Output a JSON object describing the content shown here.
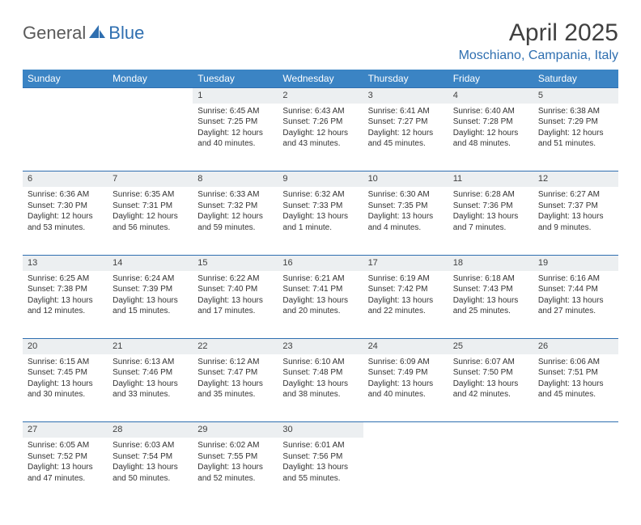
{
  "logo": {
    "part1": "General",
    "part2": "Blue"
  },
  "title": "April 2025",
  "location": "Moschiano, Campania, Italy",
  "colors": {
    "header_bg": "#3b84c4",
    "header_text": "#ffffff",
    "accent": "#2f6fb0",
    "daynum_bg": "#eceff1",
    "border": "#2f6fb0",
    "body_text": "#333333",
    "title_text": "#404040"
  },
  "weekdays": [
    "Sunday",
    "Monday",
    "Tuesday",
    "Wednesday",
    "Thursday",
    "Friday",
    "Saturday"
  ],
  "weeks": [
    [
      null,
      null,
      {
        "n": "1",
        "sr": "Sunrise: 6:45 AM",
        "ss": "Sunset: 7:25 PM",
        "d1": "Daylight: 12 hours",
        "d2": "and 40 minutes."
      },
      {
        "n": "2",
        "sr": "Sunrise: 6:43 AM",
        "ss": "Sunset: 7:26 PM",
        "d1": "Daylight: 12 hours",
        "d2": "and 43 minutes."
      },
      {
        "n": "3",
        "sr": "Sunrise: 6:41 AM",
        "ss": "Sunset: 7:27 PM",
        "d1": "Daylight: 12 hours",
        "d2": "and 45 minutes."
      },
      {
        "n": "4",
        "sr": "Sunrise: 6:40 AM",
        "ss": "Sunset: 7:28 PM",
        "d1": "Daylight: 12 hours",
        "d2": "and 48 minutes."
      },
      {
        "n": "5",
        "sr": "Sunrise: 6:38 AM",
        "ss": "Sunset: 7:29 PM",
        "d1": "Daylight: 12 hours",
        "d2": "and 51 minutes."
      }
    ],
    [
      {
        "n": "6",
        "sr": "Sunrise: 6:36 AM",
        "ss": "Sunset: 7:30 PM",
        "d1": "Daylight: 12 hours",
        "d2": "and 53 minutes."
      },
      {
        "n": "7",
        "sr": "Sunrise: 6:35 AM",
        "ss": "Sunset: 7:31 PM",
        "d1": "Daylight: 12 hours",
        "d2": "and 56 minutes."
      },
      {
        "n": "8",
        "sr": "Sunrise: 6:33 AM",
        "ss": "Sunset: 7:32 PM",
        "d1": "Daylight: 12 hours",
        "d2": "and 59 minutes."
      },
      {
        "n": "9",
        "sr": "Sunrise: 6:32 AM",
        "ss": "Sunset: 7:33 PM",
        "d1": "Daylight: 13 hours",
        "d2": "and 1 minute."
      },
      {
        "n": "10",
        "sr": "Sunrise: 6:30 AM",
        "ss": "Sunset: 7:35 PM",
        "d1": "Daylight: 13 hours",
        "d2": "and 4 minutes."
      },
      {
        "n": "11",
        "sr": "Sunrise: 6:28 AM",
        "ss": "Sunset: 7:36 PM",
        "d1": "Daylight: 13 hours",
        "d2": "and 7 minutes."
      },
      {
        "n": "12",
        "sr": "Sunrise: 6:27 AM",
        "ss": "Sunset: 7:37 PM",
        "d1": "Daylight: 13 hours",
        "d2": "and 9 minutes."
      }
    ],
    [
      {
        "n": "13",
        "sr": "Sunrise: 6:25 AM",
        "ss": "Sunset: 7:38 PM",
        "d1": "Daylight: 13 hours",
        "d2": "and 12 minutes."
      },
      {
        "n": "14",
        "sr": "Sunrise: 6:24 AM",
        "ss": "Sunset: 7:39 PM",
        "d1": "Daylight: 13 hours",
        "d2": "and 15 minutes."
      },
      {
        "n": "15",
        "sr": "Sunrise: 6:22 AM",
        "ss": "Sunset: 7:40 PM",
        "d1": "Daylight: 13 hours",
        "d2": "and 17 minutes."
      },
      {
        "n": "16",
        "sr": "Sunrise: 6:21 AM",
        "ss": "Sunset: 7:41 PM",
        "d1": "Daylight: 13 hours",
        "d2": "and 20 minutes."
      },
      {
        "n": "17",
        "sr": "Sunrise: 6:19 AM",
        "ss": "Sunset: 7:42 PM",
        "d1": "Daylight: 13 hours",
        "d2": "and 22 minutes."
      },
      {
        "n": "18",
        "sr": "Sunrise: 6:18 AM",
        "ss": "Sunset: 7:43 PM",
        "d1": "Daylight: 13 hours",
        "d2": "and 25 minutes."
      },
      {
        "n": "19",
        "sr": "Sunrise: 6:16 AM",
        "ss": "Sunset: 7:44 PM",
        "d1": "Daylight: 13 hours",
        "d2": "and 27 minutes."
      }
    ],
    [
      {
        "n": "20",
        "sr": "Sunrise: 6:15 AM",
        "ss": "Sunset: 7:45 PM",
        "d1": "Daylight: 13 hours",
        "d2": "and 30 minutes."
      },
      {
        "n": "21",
        "sr": "Sunrise: 6:13 AM",
        "ss": "Sunset: 7:46 PM",
        "d1": "Daylight: 13 hours",
        "d2": "and 33 minutes."
      },
      {
        "n": "22",
        "sr": "Sunrise: 6:12 AM",
        "ss": "Sunset: 7:47 PM",
        "d1": "Daylight: 13 hours",
        "d2": "and 35 minutes."
      },
      {
        "n": "23",
        "sr": "Sunrise: 6:10 AM",
        "ss": "Sunset: 7:48 PM",
        "d1": "Daylight: 13 hours",
        "d2": "and 38 minutes."
      },
      {
        "n": "24",
        "sr": "Sunrise: 6:09 AM",
        "ss": "Sunset: 7:49 PM",
        "d1": "Daylight: 13 hours",
        "d2": "and 40 minutes."
      },
      {
        "n": "25",
        "sr": "Sunrise: 6:07 AM",
        "ss": "Sunset: 7:50 PM",
        "d1": "Daylight: 13 hours",
        "d2": "and 42 minutes."
      },
      {
        "n": "26",
        "sr": "Sunrise: 6:06 AM",
        "ss": "Sunset: 7:51 PM",
        "d1": "Daylight: 13 hours",
        "d2": "and 45 minutes."
      }
    ],
    [
      {
        "n": "27",
        "sr": "Sunrise: 6:05 AM",
        "ss": "Sunset: 7:52 PM",
        "d1": "Daylight: 13 hours",
        "d2": "and 47 minutes."
      },
      {
        "n": "28",
        "sr": "Sunrise: 6:03 AM",
        "ss": "Sunset: 7:54 PM",
        "d1": "Daylight: 13 hours",
        "d2": "and 50 minutes."
      },
      {
        "n": "29",
        "sr": "Sunrise: 6:02 AM",
        "ss": "Sunset: 7:55 PM",
        "d1": "Daylight: 13 hours",
        "d2": "and 52 minutes."
      },
      {
        "n": "30",
        "sr": "Sunrise: 6:01 AM",
        "ss": "Sunset: 7:56 PM",
        "d1": "Daylight: 13 hours",
        "d2": "and 55 minutes."
      },
      null,
      null,
      null
    ]
  ]
}
